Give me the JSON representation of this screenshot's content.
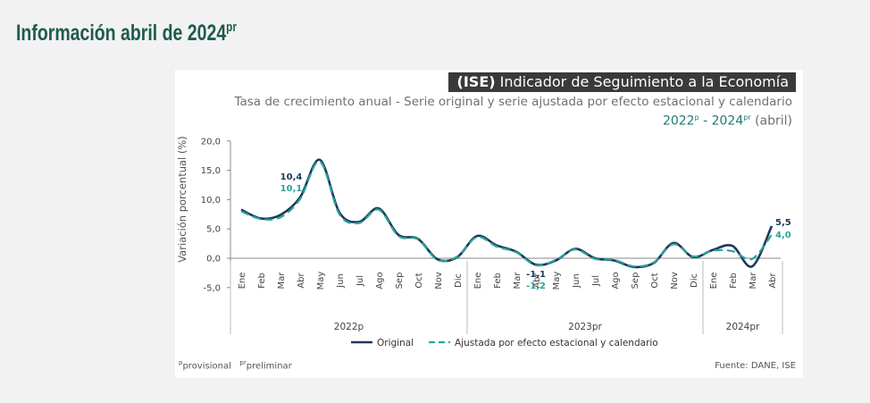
{
  "page": {
    "title": "Información abril de 2024",
    "title_sup": "pr"
  },
  "chart_data": {
    "type": "line",
    "title_bold": "(ISE)",
    "title_rest": " Indicador de Seguimiento a la Economía",
    "subtitle": "Tasa de crecimiento anual - Serie original y serie ajustada por efecto estacional y calendario",
    "period": {
      "start": "2022",
      "start_sup": "p",
      "sep": " - ",
      "end": "2024",
      "end_sup": "pr",
      "month": " (abril)"
    },
    "ylabel": "Variación porcentual (%)",
    "ylim": [
      -5,
      20
    ],
    "yticks": [
      "20,0",
      "15,0",
      "10,0",
      "5,0",
      "0,0",
      "-5,0"
    ],
    "ytick_values": [
      20,
      15,
      10,
      5,
      0,
      -5
    ],
    "categories": [
      "Ene",
      "Feb",
      "Mar",
      "Abr",
      "May",
      "Jun",
      "Jul",
      "Ago",
      "Sep",
      "Oct",
      "Nov",
      "Dic",
      "Ene",
      "Feb",
      "Mar",
      "Abr",
      "May",
      "Jun",
      "Jul",
      "Ago",
      "Sep",
      "Oct",
      "Nov",
      "Dic",
      "Ene",
      "Feb",
      "Mar",
      "Abr"
    ],
    "groups": [
      {
        "label": "2022p",
        "count": 12
      },
      {
        "label": "2023pr",
        "count": 12
      },
      {
        "label": "2024pr",
        "count": 4
      }
    ],
    "series": [
      {
        "name": "Original",
        "color": "#1b3a5c",
        "values": [
          8.3,
          6.8,
          7.4,
          10.4,
          16.8,
          7.8,
          6.2,
          8.5,
          4.0,
          3.3,
          -0.2,
          0.2,
          3.8,
          2.2,
          1.1,
          -1.1,
          -0.4,
          1.6,
          0.0,
          -0.4,
          -1.5,
          -0.8,
          2.6,
          0.2,
          1.4,
          2.1,
          -1.4,
          5.5
        ]
      },
      {
        "name": "Ajustada por efecto estacional y calendario",
        "color": "#2aa39a",
        "values": [
          8.0,
          6.7,
          7.0,
          10.1,
          16.5,
          7.5,
          6.0,
          8.3,
          3.8,
          3.2,
          -0.3,
          0.3,
          3.6,
          2.0,
          1.0,
          -1.2,
          -0.3,
          1.5,
          -0.1,
          -0.3,
          -1.4,
          -0.7,
          2.4,
          0.3,
          1.3,
          1.2,
          -0.1,
          4.0
        ]
      }
    ],
    "annotations": [
      {
        "index": 3,
        "series": 0,
        "text": "10,4"
      },
      {
        "index": 3,
        "series": 1,
        "text": "10,1"
      },
      {
        "index": 15,
        "series": 0,
        "text": "-1,1"
      },
      {
        "index": 15,
        "series": 1,
        "text": "-1,2"
      },
      {
        "index": 27,
        "series": 0,
        "text": "5,5"
      },
      {
        "index": 27,
        "series": 1,
        "text": "4,0"
      }
    ]
  },
  "footnote": {
    "sup1": "p",
    "text1": "provisional",
    "sup2": "pr",
    "text2": "preliminar"
  },
  "source": "Fuente: DANE, ISE"
}
